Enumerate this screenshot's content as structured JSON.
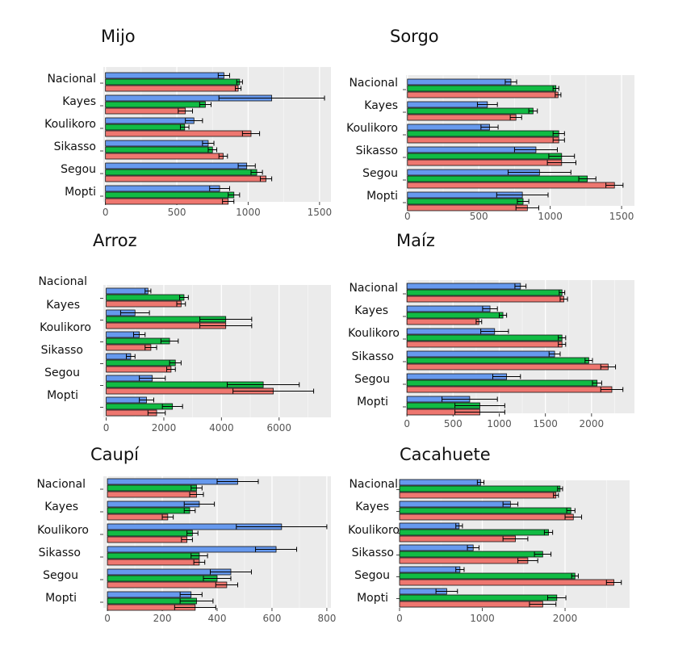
{
  "figure": {
    "colors": {
      "blue": "#6699ee",
      "green": "#11bb44",
      "red": "#ee7770",
      "panel_bg": "#ebebeb",
      "grid": "#ffffff"
    },
    "series_names": [
      "blue",
      "green",
      "red"
    ]
  },
  "chart_data": [
    {
      "type": "bar",
      "orientation": "horizontal",
      "title": "Mijo",
      "categories": [
        "Nacional",
        "Kayes",
        "Koulikoro",
        "Sikasso",
        "Segou",
        "Mopti"
      ],
      "xlim": [
        -15,
        1580
      ],
      "xticks": [
        0,
        500,
        1000,
        1500
      ],
      "series": [
        {
          "name": "blue",
          "values": [
            830,
            1165,
            620,
            720,
            990,
            800
          ],
          "errors": [
            40,
            370,
            60,
            40,
            60,
            70
          ]
        },
        {
          "name": "green",
          "values": [
            940,
            700,
            555,
            750,
            1060,
            900
          ],
          "errors": [
            20,
            40,
            30,
            30,
            40,
            40
          ]
        },
        {
          "name": "red",
          "values": [
            930,
            560,
            1020,
            825,
            1125,
            860
          ],
          "errors": [
            20,
            50,
            60,
            30,
            40,
            40
          ]
        }
      ]
    },
    {
      "type": "bar",
      "orientation": "horizontal",
      "title": "Sorgo",
      "categories": [
        "Nacional",
        "Kayes",
        "Koulikoro",
        "Sikasso",
        "Segou",
        "Mopti"
      ],
      "xlim": [
        -10,
        1590
      ],
      "xticks": [
        0,
        500,
        1000,
        1500
      ],
      "series": [
        {
          "name": "blue",
          "values": [
            725,
            560,
            575,
            900,
            925,
            805
          ],
          "errors": [
            40,
            70,
            60,
            150,
            220,
            180
          ]
        },
        {
          "name": "green",
          "values": [
            1040,
            880,
            1060,
            1080,
            1260,
            810
          ],
          "errors": [
            20,
            30,
            40,
            90,
            60,
            40
          ]
        },
        {
          "name": "red",
          "values": [
            1055,
            760,
            1060,
            1080,
            1450,
            840
          ],
          "errors": [
            20,
            40,
            40,
            100,
            60,
            80
          ]
        }
      ]
    },
    {
      "type": "bar",
      "orientation": "horizontal",
      "title": "Arroz",
      "categories": [
        "Nacional",
        "Kayes",
        "Koulikoro",
        "Sikasso",
        "Segou",
        "Mopti"
      ],
      "xlim": [
        -100,
        7800
      ],
      "xticks": [
        0,
        2000,
        4000,
        6000
      ],
      "series": [
        {
          "name": "blue",
          "values": [
            1450,
            1000,
            1150,
            850,
            1600,
            1400
          ],
          "errors": [
            100,
            500,
            200,
            150,
            450,
            250
          ]
        },
        {
          "name": "green",
          "values": [
            2700,
            4150,
            2200,
            2400,
            5450,
            2300
          ],
          "errors": [
            150,
            900,
            300,
            200,
            1250,
            350
          ]
        },
        {
          "name": "red",
          "values": [
            2600,
            4150,
            1550,
            2250,
            5800,
            1750
          ],
          "errors": [
            150,
            900,
            200,
            150,
            1400,
            300
          ]
        }
      ]
    },
    {
      "type": "bar",
      "orientation": "horizontal",
      "title": "Maíz",
      "categories": [
        "Nacional",
        "Kayes",
        "Koulikoro",
        "Sikasso",
        "Segou",
        "Mopti"
      ],
      "xlim": [
        -10,
        2465
      ],
      "xticks": [
        0,
        500,
        1000,
        1500,
        2000
      ],
      "series": [
        {
          "name": "blue",
          "values": [
            1230,
            900,
            950,
            1600,
            1080,
            680
          ],
          "errors": [
            60,
            80,
            150,
            60,
            150,
            300
          ]
        },
        {
          "name": "green",
          "values": [
            1680,
            1040,
            1680,
            1970,
            2060,
            790
          ],
          "errors": [
            30,
            40,
            40,
            40,
            50,
            270
          ]
        },
        {
          "name": "red",
          "values": [
            1700,
            780,
            1680,
            2180,
            2220,
            790
          ],
          "errors": [
            40,
            30,
            40,
            80,
            120,
            270
          ]
        }
      ]
    },
    {
      "type": "bar",
      "orientation": "horizontal",
      "title": "Caupí",
      "categories": [
        "Nacional",
        "Kayes",
        "Koulikoro",
        "Sikasso",
        "Segou",
        "Mopti"
      ],
      "xlim": [
        -15,
        815
      ],
      "xticks": [
        0,
        200,
        400,
        600,
        800
      ],
      "series": [
        {
          "name": "blue",
          "values": [
            475,
            335,
            635,
            615,
            450,
            305
          ],
          "errors": [
            75,
            55,
            165,
            75,
            75,
            40
          ]
        },
        {
          "name": "green",
          "values": [
            325,
            300,
            310,
            335,
            400,
            325
          ],
          "errors": [
            20,
            20,
            20,
            30,
            50,
            60
          ]
        },
        {
          "name": "red",
          "values": [
            325,
            220,
            290,
            335,
            435,
            320
          ],
          "errors": [
            25,
            20,
            20,
            20,
            40,
            75
          ]
        }
      ]
    },
    {
      "type": "bar",
      "orientation": "horizontal",
      "title": "Cacahuete",
      "categories": [
        "Nacional",
        "Kayes",
        "Koulikoro",
        "Sikasso",
        "Segou",
        "Mopti"
      ],
      "xlim": [
        0,
        2780
      ],
      "xticks": [
        0,
        1000,
        2000
      ],
      "series": [
        {
          "name": "blue",
          "values": [
            980,
            1340,
            720,
            890,
            730,
            570
          ],
          "errors": [
            40,
            90,
            40,
            70,
            50,
            130
          ]
        },
        {
          "name": "green",
          "values": [
            1940,
            2070,
            1800,
            1730,
            2120,
            1900
          ],
          "errors": [
            30,
            50,
            50,
            100,
            40,
            110
          ]
        },
        {
          "name": "red",
          "values": [
            1890,
            2100,
            1400,
            1550,
            2590,
            1730
          ],
          "errors": [
            30,
            100,
            150,
            120,
            90,
            160
          ]
        }
      ]
    }
  ]
}
